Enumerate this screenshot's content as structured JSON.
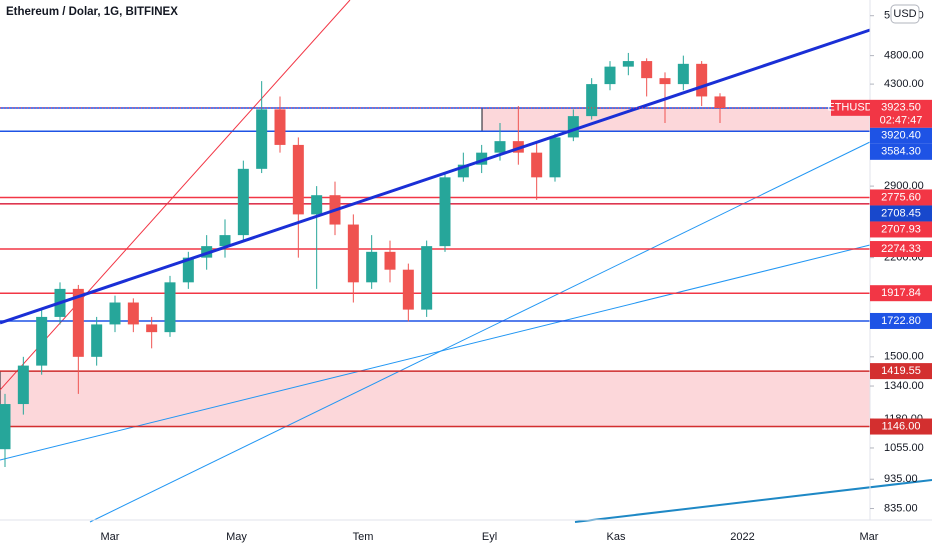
{
  "chart_data": {
    "type": "candlestick",
    "title": "Ethereum / Dolar, 1G, BITFINEX",
    "currency": "USD",
    "log_scale": true,
    "ylim": [
      805,
      5950
    ],
    "yticks": [
      {
        "value": 5600,
        "label": "5600.00"
      },
      {
        "value": 4800,
        "label": "4800.00"
      },
      {
        "value": 4300,
        "label": "4300.00"
      },
      {
        "value": 2900,
        "label": "2900.00"
      },
      {
        "value": 2200,
        "label": "2200.00"
      },
      {
        "value": 1500,
        "label": "1500.00"
      },
      {
        "value": 1340,
        "label": "1340.00"
      },
      {
        "value": 1180,
        "label": "1180.00"
      },
      {
        "value": 1055,
        "label": "1055.00"
      },
      {
        "value": 935,
        "label": "935.00"
      },
      {
        "value": 835,
        "label": "835.00"
      }
    ],
    "x_labels": [
      "Mar",
      "May",
      "Tem",
      "Eyl",
      "Kas",
      "2022",
      "Mar"
    ],
    "up_color": "#26a69a",
    "down_color": "#ef5350",
    "open": [
      1050,
      1250,
      1450,
      1750,
      1950,
      1500,
      1700,
      1850,
      1700,
      1650,
      2000,
      2200,
      2300,
      2400,
      3100,
      3900,
      3400,
      2600,
      2800,
      2500,
      2000,
      2250,
      2100,
      1800,
      2300,
      3000,
      3150,
      3300,
      3450,
      3300,
      3000,
      3500,
      3800,
      4300,
      4600,
      4700,
      4400,
      4300,
      4650,
      4100
    ],
    "high": [
      1300,
      1500,
      1800,
      2000,
      1980,
      1750,
      1900,
      1880,
      1750,
      2050,
      2250,
      2400,
      2550,
      3200,
      4350,
      4100,
      3500,
      2900,
      2950,
      2600,
      2400,
      2350,
      2150,
      2350,
      3050,
      3300,
      3400,
      3700,
      3950,
      3450,
      3550,
      3900,
      4400,
      4700,
      4850,
      4750,
      4500,
      4800,
      4700,
      4150
    ],
    "low": [
      980,
      1200,
      1400,
      1700,
      1300,
      1450,
      1650,
      1650,
      1550,
      1620,
      1950,
      2100,
      2200,
      2350,
      3050,
      3300,
      2200,
      1950,
      2400,
      1850,
      1950,
      2000,
      1720,
      1750,
      2250,
      2950,
      3050,
      3200,
      3150,
      2750,
      2950,
      3450,
      3750,
      4200,
      4450,
      4100,
      3700,
      4200,
      3950,
      3700
    ],
    "close": [
      1250,
      1450,
      1750,
      1950,
      1500,
      1700,
      1850,
      1700,
      1650,
      2000,
      2200,
      2300,
      2400,
      3100,
      3900,
      3400,
      2600,
      2800,
      2500,
      2000,
      2250,
      2100,
      1800,
      2300,
      3000,
      3150,
      3300,
      3450,
      3300,
      3000,
      3500,
      3800,
      4300,
      4600,
      4700,
      4400,
      4300,
      4650,
      4100,
      3920
    ],
    "current": {
      "symbol": "ETHUSD",
      "value": 3923.5,
      "label": "3923.50",
      "countdown": "02:47:47",
      "color": "#f23645"
    },
    "levels": [
      {
        "value": 3920.4,
        "label": "3920.40",
        "color": "#1e53e5"
      },
      {
        "value": 3584.3,
        "label": "3584.30",
        "color": "#1e53e5"
      },
      {
        "value": 2775.6,
        "label": "2775.60",
        "color": "#f23645"
      },
      {
        "value": 2708.45,
        "label": "2708.45",
        "color": "#1848cc"
      },
      {
        "value": 2707.93,
        "label": "2707.93",
        "color": "#f23645"
      },
      {
        "value": 2274.33,
        "label": "2274.33",
        "color": "#f23645"
      },
      {
        "value": 1917.84,
        "label": "1917.84",
        "color": "#f23645"
      },
      {
        "value": 1722.8,
        "label": "1722.80",
        "color": "#1e53e5"
      },
      {
        "value": 1419.55,
        "label": "1419.55",
        "color": "#d32f2f"
      },
      {
        "value": 1146,
        "label": "1146.00",
        "color": "#d32f2f"
      }
    ]
  }
}
